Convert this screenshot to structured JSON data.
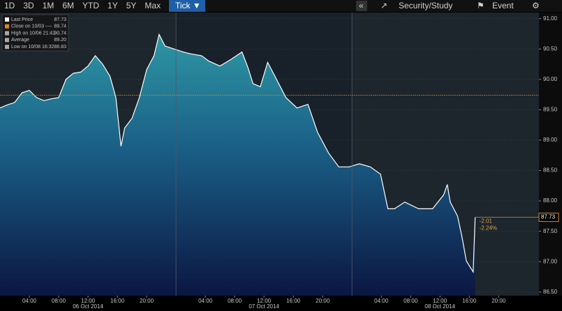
{
  "toolbar": {
    "periods": [
      "1D",
      "3D",
      "1M",
      "6M",
      "YTD",
      "1Y",
      "5Y",
      "Max"
    ],
    "mode": "Tick ▼",
    "study": "Security/Study",
    "event": "Event"
  },
  "chart_data": {
    "type": "area",
    "stats": [
      {
        "name": "Last Price",
        "value": "87.73"
      },
      {
        "name": "Close on 10/03 ----",
        "value": "89.74"
      },
      {
        "name": "High on 10/06 21:42",
        "value": "90.74"
      },
      {
        "name": "Average",
        "value": "89.20"
      },
      {
        "name": "Low on 10/08 16:32",
        "value": "86.83"
      }
    ],
    "close_level": 89.74,
    "last_value": 87.73,
    "last_label": "87.73",
    "change": "-2.01",
    "change_pct": "-2.24%",
    "x": [
      0,
      1,
      2,
      3,
      4,
      5,
      6,
      7,
      8,
      9,
      10,
      11,
      12,
      13,
      14,
      15,
      15.8,
      16.5,
      17,
      18,
      19,
      20,
      21,
      21.7,
      22.5,
      23.5,
      25,
      26,
      27.5,
      28.5,
      30,
      31.5,
      33,
      33.8,
      34.5,
      35.5,
      36.5,
      37.5,
      39,
      40.5,
      42,
      43.3,
      44.8,
      46.2,
      47.6,
      49,
      50.5,
      51.9,
      52.9,
      53.8,
      55.2,
      57.1,
      59,
      60.5,
      61,
      61.4,
      62.4,
      63,
      63.6,
      64.53,
      64.8
    ],
    "series": [
      {
        "name": "Last Price",
        "color": "#ffffff",
        "values": [
          89.53,
          89.58,
          89.62,
          89.78,
          89.82,
          89.7,
          89.65,
          89.68,
          89.7,
          90.0,
          90.1,
          90.12,
          90.22,
          90.39,
          90.25,
          90.05,
          89.7,
          88.9,
          89.2,
          89.36,
          89.7,
          90.16,
          90.39,
          90.74,
          90.55,
          90.51,
          90.45,
          90.42,
          90.39,
          90.3,
          90.22,
          90.33,
          90.45,
          90.2,
          89.93,
          89.88,
          90.28,
          90.05,
          89.7,
          89.53,
          89.59,
          89.13,
          88.79,
          88.56,
          88.56,
          88.61,
          88.56,
          88.44,
          87.87,
          87.87,
          87.98,
          87.87,
          87.87,
          88.1,
          88.27,
          87.98,
          87.75,
          87.41,
          87.01,
          86.83,
          87.73
        ]
      }
    ],
    "xlim": [
      0,
      73.5
    ],
    "ylim": [
      86.44,
      91.1
    ],
    "xticks": [
      {
        "value": 4,
        "label": "04:00"
      },
      {
        "value": 8,
        "label": "08:00"
      },
      {
        "value": 12,
        "label": "12:00"
      },
      {
        "value": 16,
        "label": "16:00"
      },
      {
        "value": 20,
        "label": "20:00"
      },
      {
        "value": 28,
        "label": "04:00"
      },
      {
        "value": 32,
        "label": "08:00"
      },
      {
        "value": 36,
        "label": "12:00"
      },
      {
        "value": 40,
        "label": "16:00"
      },
      {
        "value": 44,
        "label": "20:00"
      },
      {
        "value": 52,
        "label": "04:00"
      },
      {
        "value": 56,
        "label": "08:00"
      },
      {
        "value": 60,
        "label": "12:00"
      },
      {
        "value": 64,
        "label": "16:00"
      },
      {
        "value": 68,
        "label": "20:00"
      }
    ],
    "day_ticks": [
      {
        "value": 12,
        "label": "06 Oct 2014"
      },
      {
        "value": 36,
        "label": "07 Oct 2014"
      },
      {
        "value": 60,
        "label": "08 Oct 2014"
      }
    ],
    "yticks": [
      {
        "value": 86.5,
        "label": "86.50"
      },
      {
        "value": 87,
        "label": "87.00"
      },
      {
        "value": 87.5,
        "label": "87.50"
      },
      {
        "value": 88,
        "label": "88.00"
      },
      {
        "value": 88.5,
        "label": "88.50"
      },
      {
        "value": 89,
        "label": "89.00"
      },
      {
        "value": 89.5,
        "label": "89.50"
      },
      {
        "value": 90,
        "label": "90.00"
      },
      {
        "value": 90.5,
        "label": "90.50"
      },
      {
        "value": 91,
        "label": "91.00"
      }
    ],
    "grid": true
  }
}
